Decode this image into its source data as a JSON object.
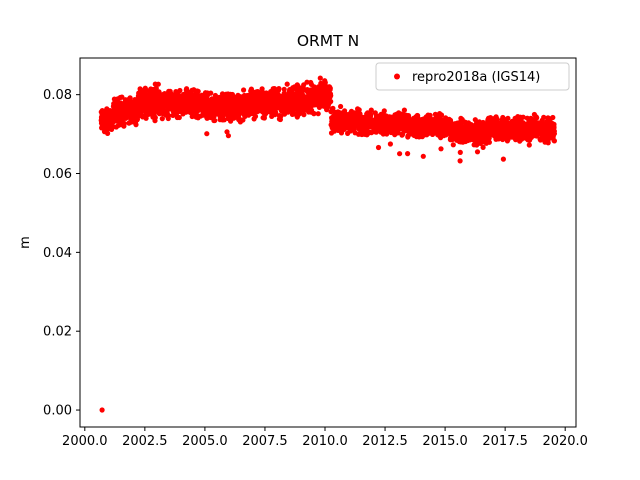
{
  "figure": {
    "background": "#ffffff"
  },
  "chart_data": {
    "type": "scatter",
    "title": "ORMT N",
    "xlabel": "",
    "ylabel": "m",
    "xlim": [
      1999.8,
      2020.45
    ],
    "ylim": [
      -0.0043,
      0.0893
    ],
    "xticks": [
      2000.0,
      2002.5,
      2005.0,
      2007.5,
      2010.0,
      2012.5,
      2015.0,
      2017.5,
      2020.0
    ],
    "xtick_labels": [
      "2000.0",
      "2002.5",
      "2005.0",
      "2007.5",
      "2010.0",
      "2012.5",
      "2015.0",
      "2017.5",
      "2020.0"
    ],
    "yticks": [
      0.0,
      0.02,
      0.04,
      0.06,
      0.08
    ],
    "ytick_labels": [
      "0.00",
      "0.02",
      "0.04",
      "0.06",
      "0.08"
    ],
    "grid": false,
    "legend": {
      "position": "upper right",
      "label": "repro2018a (IGS14)",
      "marker_color": "#ff0000",
      "border_color": "#cccccc",
      "background": "#ffffff"
    },
    "series": [
      {
        "name": "repro2018a (IGS14)",
        "color": "#ff0000",
        "marker": "circle",
        "marker_radius_px": 2.6,
        "points_per_year": 200,
        "seed": 42,
        "low_straggler_rate": 0.008,
        "band_segments": [
          {
            "x0": 2000.68,
            "x1": 2001.2,
            "mean": 0.0735,
            "spread": 0.0028
          },
          {
            "x0": 2001.2,
            "x1": 2002.2,
            "mean": 0.0758,
            "spread": 0.003
          },
          {
            "x0": 2002.2,
            "x1": 2003.4,
            "mean": 0.0782,
            "spread": 0.0036
          },
          {
            "x0": 2003.4,
            "x1": 2005.0,
            "mean": 0.0778,
            "spread": 0.0033
          },
          {
            "x0": 2005.0,
            "x1": 2006.6,
            "mean": 0.0768,
            "spread": 0.003
          },
          {
            "x0": 2006.6,
            "x1": 2008.4,
            "mean": 0.0778,
            "spread": 0.0032
          },
          {
            "x0": 2008.4,
            "x1": 2009.4,
            "mean": 0.0788,
            "spread": 0.0034
          },
          {
            "x0": 2009.4,
            "x1": 2010.25,
            "mean": 0.0792,
            "spread": 0.0038
          },
          {
            "x0": 2010.25,
            "x1": 2011.5,
            "mean": 0.0734,
            "spread": 0.0026
          },
          {
            "x0": 2011.5,
            "x1": 2013.5,
            "mean": 0.0726,
            "spread": 0.0026
          },
          {
            "x0": 2013.5,
            "x1": 2015.2,
            "mean": 0.0719,
            "spread": 0.0026
          },
          {
            "x0": 2015.2,
            "x1": 2016.8,
            "mean": 0.0706,
            "spread": 0.0028
          },
          {
            "x0": 2016.8,
            "x1": 2018.2,
            "mean": 0.0714,
            "spread": 0.0026
          },
          {
            "x0": 2018.2,
            "x1": 2019.55,
            "mean": 0.0711,
            "spread": 0.0027
          }
        ],
        "outliers": [
          [
            2000.72,
            0.0
          ],
          [
            2016.35,
            0.0655
          ]
        ]
      }
    ]
  }
}
